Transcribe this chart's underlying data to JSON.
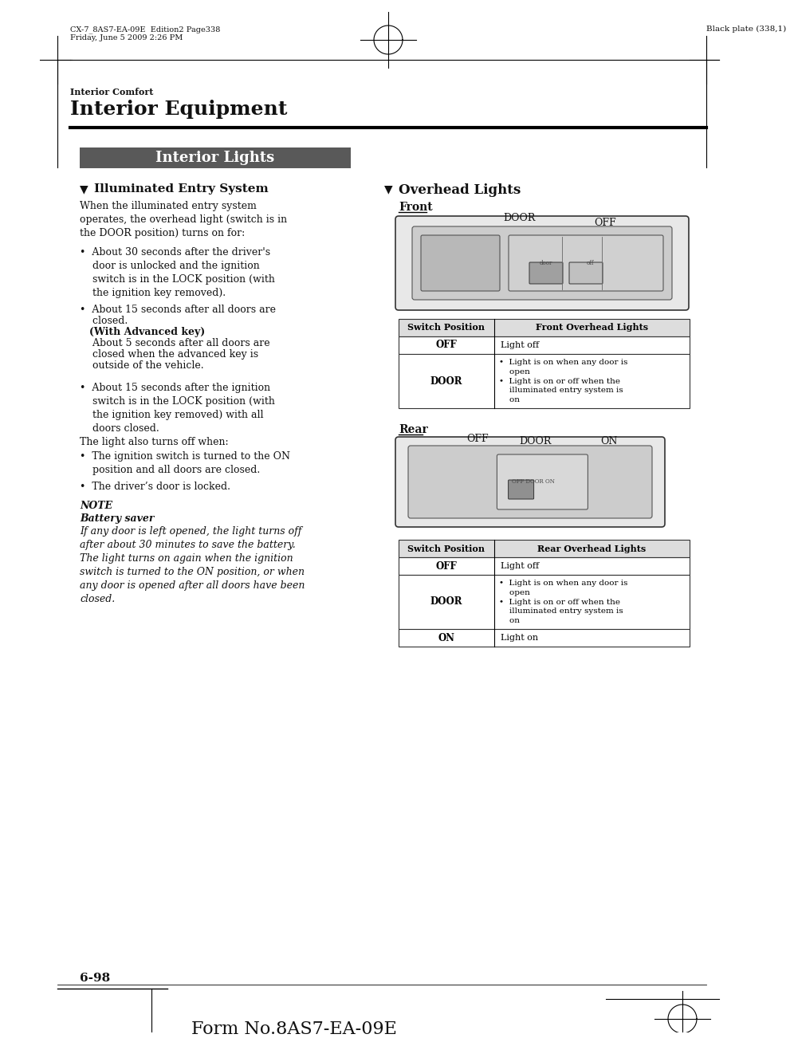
{
  "page_bg": "#ffffff",
  "header_top_left": "CX-7_8AS7-EA-09E  Edition2 Page338\nFriday, June 5 2009 2:26 PM",
  "header_top_right": "Black plate (338,1)",
  "section_label": "Interior Comfort",
  "section_title": "Interior Equipment",
  "banner_text": "Interior Lights",
  "banner_bg": "#595959",
  "banner_text_color": "#ffffff",
  "subsection1_title": "Illuminated Entry System",
  "subsection2_title": "Overhead Lights",
  "front_label": "Front",
  "rear_label": "Rear",
  "front_table_headers": [
    "Switch Position",
    "Front Overhead Lights"
  ],
  "rear_table_headers": [
    "Switch Position",
    "Rear Overhead Lights"
  ],
  "page_number": "6-98",
  "form_number": "Form No.8AS7-EA-09E"
}
